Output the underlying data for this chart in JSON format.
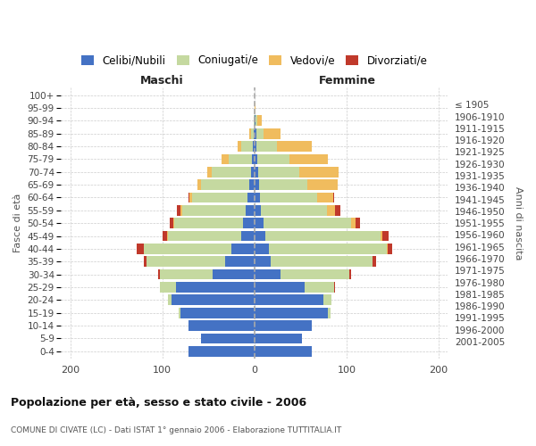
{
  "age_groups": [
    "0-4",
    "5-9",
    "10-14",
    "15-19",
    "20-24",
    "25-29",
    "30-34",
    "35-39",
    "40-44",
    "45-49",
    "50-54",
    "55-59",
    "60-64",
    "65-69",
    "70-74",
    "75-79",
    "80-84",
    "85-89",
    "90-94",
    "95-99",
    "100+"
  ],
  "birth_years": [
    "2001-2005",
    "1996-2000",
    "1991-1995",
    "1986-1990",
    "1981-1985",
    "1976-1980",
    "1971-1975",
    "1966-1970",
    "1961-1965",
    "1956-1960",
    "1951-1955",
    "1946-1950",
    "1941-1945",
    "1936-1940",
    "1931-1935",
    "1926-1930",
    "1921-1925",
    "1916-1920",
    "1911-1915",
    "1906-1910",
    "≤ 1905"
  ],
  "males_celibi": [
    72,
    58,
    72,
    80,
    90,
    85,
    45,
    32,
    25,
    14,
    12,
    10,
    8,
    6,
    4,
    3,
    2,
    1,
    0,
    0,
    0
  ],
  "males_coniugati": [
    0,
    0,
    0,
    2,
    4,
    18,
    58,
    85,
    95,
    80,
    75,
    68,
    60,
    52,
    42,
    25,
    12,
    3,
    1,
    0,
    0
  ],
  "males_vedovi": [
    0,
    0,
    0,
    0,
    0,
    0,
    0,
    0,
    0,
    1,
    1,
    2,
    3,
    4,
    5,
    8,
    4,
    2,
    0,
    0,
    0
  ],
  "males_divorziati": [
    0,
    0,
    0,
    0,
    0,
    0,
    2,
    3,
    8,
    5,
    4,
    4,
    1,
    0,
    0,
    0,
    0,
    0,
    0,
    0,
    0
  ],
  "females_nubili": [
    62,
    52,
    62,
    80,
    75,
    55,
    28,
    18,
    16,
    12,
    10,
    7,
    6,
    5,
    4,
    3,
    2,
    2,
    1,
    0,
    0
  ],
  "females_coniugate": [
    0,
    0,
    0,
    3,
    9,
    32,
    75,
    110,
    128,
    125,
    95,
    72,
    62,
    52,
    45,
    35,
    22,
    8,
    2,
    0,
    0
  ],
  "females_vedove": [
    0,
    0,
    0,
    0,
    0,
    0,
    0,
    0,
    1,
    2,
    5,
    9,
    18,
    33,
    42,
    42,
    38,
    18,
    5,
    1,
    0
  ],
  "females_divorziate": [
    0,
    0,
    0,
    0,
    0,
    1,
    2,
    4,
    5,
    7,
    5,
    5,
    1,
    0,
    0,
    0,
    0,
    0,
    0,
    0,
    0
  ],
  "color_celibi": "#4472c4",
  "color_coniugati": "#c5d9a0",
  "color_vedovi": "#f0bc5e",
  "color_divorziati": "#c0392b",
  "title": "Popolazione per età, sesso e stato civile - 2006",
  "subtitle": "COMUNE DI CIVATE (LC) - Dati ISTAT 1° gennaio 2006 - Elaborazione TUTTITALIA.IT",
  "ylabel_left": "Fasce di età",
  "ylabel_right": "Anni di nascita",
  "xlim": 210,
  "background_color": "#ffffff",
  "grid_color": "#cccccc",
  "legend_labels": [
    "Celibi/Nubili",
    "Coniugati/e",
    "Vedovi/e",
    "Divorziati/e"
  ]
}
